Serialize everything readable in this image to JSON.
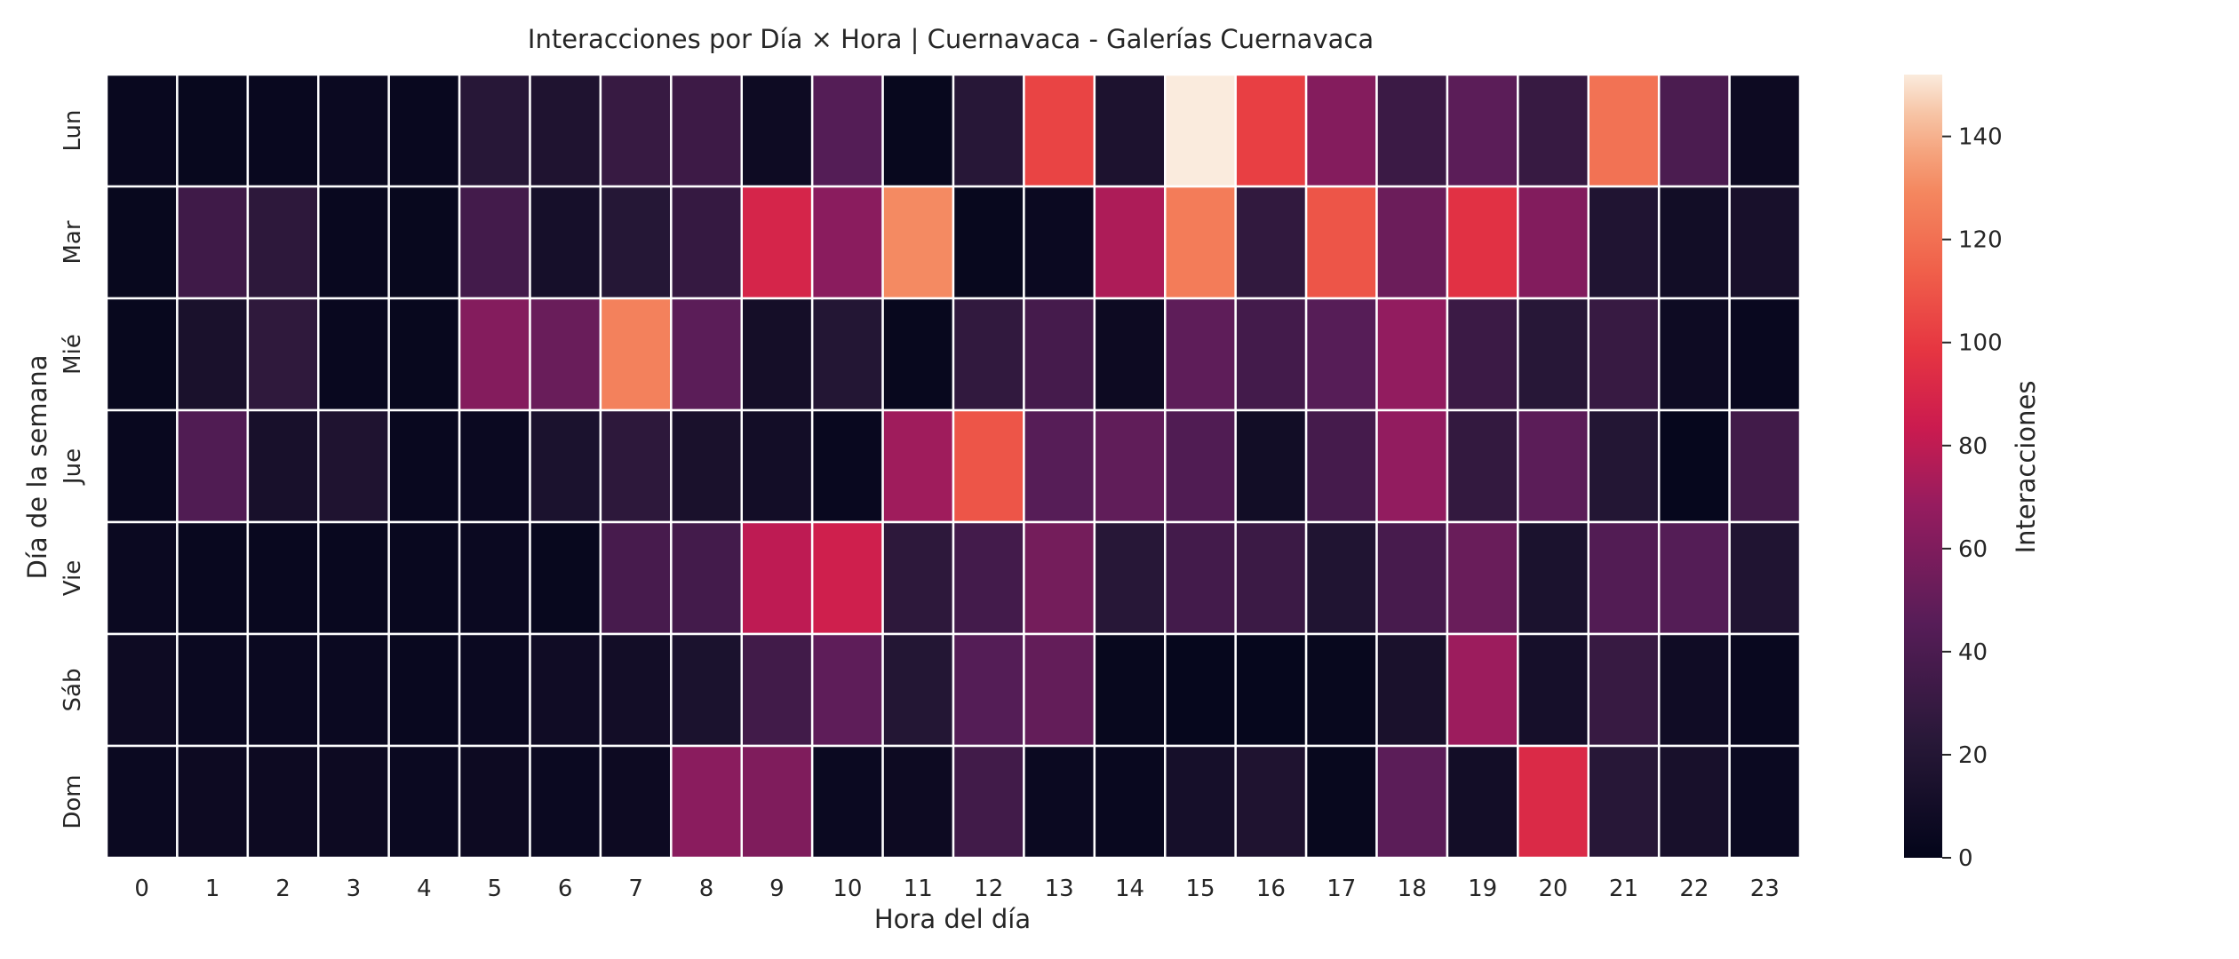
{
  "chart_data": {
    "type": "heatmap",
    "title": "Interacciones por Día × Hora | Cuernavaca - Galerías Cuernavaca",
    "xlabel": "Hora del día",
    "ylabel": "Día de la semana",
    "x": [
      "0",
      "1",
      "2",
      "3",
      "4",
      "5",
      "6",
      "7",
      "8",
      "9",
      "10",
      "11",
      "12",
      "13",
      "14",
      "15",
      "16",
      "17",
      "18",
      "19",
      "20",
      "21",
      "22",
      "23"
    ],
    "y": [
      "Lun",
      "Mar",
      "Mié",
      "Jue",
      "Vie",
      "Sáb",
      "Dom"
    ],
    "values": [
      [
        4,
        3,
        4,
        5,
        4,
        22,
        17,
        30,
        33,
        7,
        44,
        3,
        22,
        104,
        16,
        152,
        102,
        62,
        32,
        47,
        30,
        121,
        40,
        6
      ],
      [
        3,
        34,
        25,
        4,
        3,
        36,
        12,
        21,
        29,
        89,
        64,
        130,
        3,
        5,
        75,
        125,
        27,
        110,
        53,
        96,
        61,
        18,
        9,
        13
      ],
      [
        3,
        14,
        26,
        4,
        3,
        62,
        52,
        127,
        47,
        11,
        20,
        3,
        27,
        37,
        6,
        48,
        36,
        45,
        67,
        32,
        22,
        30,
        7,
        4
      ],
      [
        4,
        42,
        13,
        17,
        4,
        5,
        15,
        25,
        14,
        10,
        4,
        71,
        110,
        45,
        49,
        42,
        9,
        37,
        67,
        28,
        47,
        20,
        2,
        35
      ],
      [
        5,
        4,
        4,
        4,
        4,
        5,
        3,
        38,
        36,
        80,
        86,
        25,
        36,
        56,
        22,
        36,
        32,
        18,
        38,
        52,
        15,
        43,
        44,
        18
      ],
      [
        7,
        5,
        5,
        5,
        4,
        5,
        8,
        10,
        15,
        35,
        48,
        20,
        44,
        50,
        3,
        2,
        2,
        3,
        14,
        70,
        12,
        30,
        8,
        4
      ],
      [
        5,
        6,
        6,
        6,
        5,
        6,
        5,
        6,
        64,
        60,
        5,
        6,
        35,
        5,
        4,
        12,
        17,
        3,
        47,
        10,
        92,
        22,
        13,
        5
      ]
    ],
    "vmin": 0,
    "vmax": 152,
    "colorbar": {
      "label": "Interacciones",
      "ticks": [
        0,
        20,
        40,
        60,
        80,
        100,
        120,
        140
      ]
    },
    "colormap": "rocket",
    "grid": false
  }
}
